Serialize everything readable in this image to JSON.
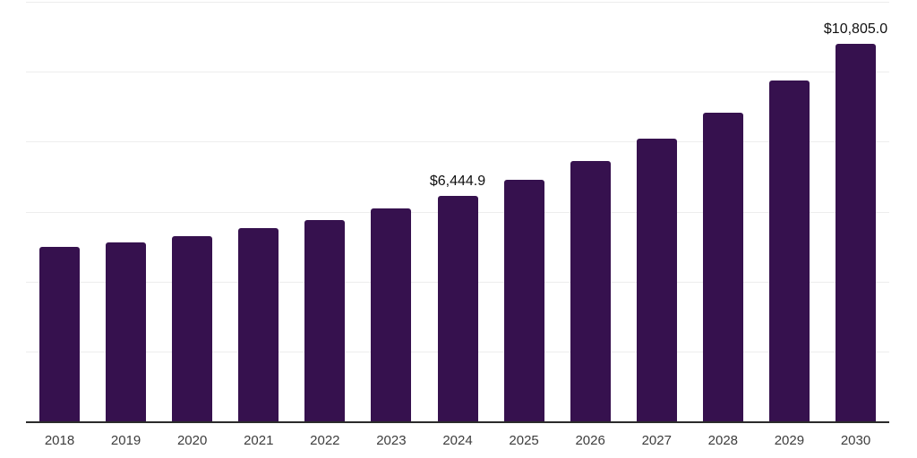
{
  "chart_data": {
    "type": "bar",
    "title": "",
    "xlabel": "",
    "ylabel": "",
    "categories": [
      "2018",
      "2019",
      "2020",
      "2021",
      "2022",
      "2023",
      "2024",
      "2025",
      "2026",
      "2027",
      "2028",
      "2029",
      "2030"
    ],
    "values": [
      4990,
      5115,
      5300,
      5520,
      5755,
      6090,
      6444.9,
      6910,
      7445,
      8075,
      8835,
      9740,
      10805.0
    ],
    "data_labels": [
      {
        "category": "2024",
        "text": "$6,444.9"
      },
      {
        "category": "2030",
        "text": "$10,805.0"
      }
    ],
    "ylim": [
      0,
      12000
    ],
    "gridlines": [
      2000,
      4000,
      6000,
      8000,
      10000,
      12000
    ],
    "grid": "horizontal",
    "legend": "none",
    "y_axis_tick_labels": "none",
    "colors": {
      "bar": "#36114E",
      "gridline": "#ededed",
      "axis_line": "#2b2b2b",
      "tick_label": "#3d3d3d",
      "data_label": "#101010",
      "background": "#ffffff"
    }
  }
}
